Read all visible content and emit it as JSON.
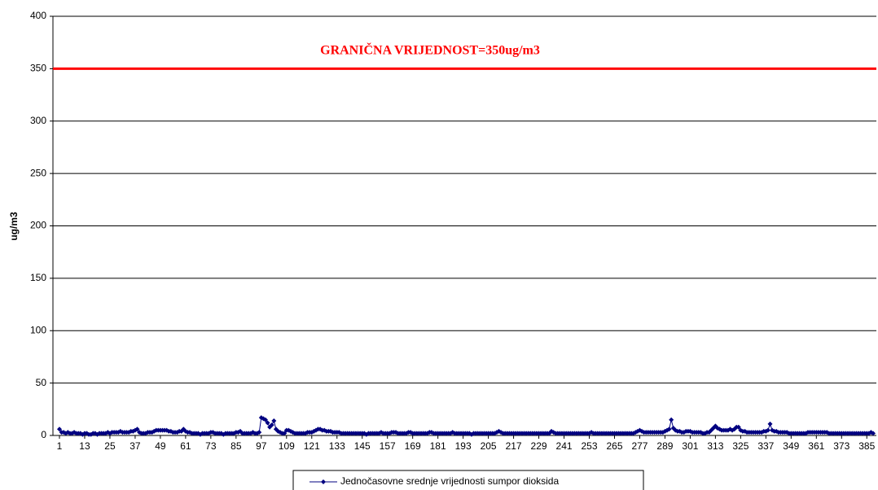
{
  "chart_data": {
    "type": "line",
    "y_label": "ug/m3",
    "annotation": "GRANIČNA VRIJEDNOST=350ug/m3",
    "reference_line": {
      "value": 350,
      "color": "#ff0000"
    },
    "xlim": [
      1,
      388
    ],
    "xticks": [
      1,
      13,
      25,
      37,
      49,
      61,
      73,
      85,
      97,
      109,
      121,
      133,
      145,
      157,
      169,
      181,
      193,
      205,
      217,
      229,
      241,
      253,
      265,
      277,
      289,
      301,
      313,
      325,
      337,
      349,
      361,
      373,
      385
    ],
    "ylim": [
      0,
      400
    ],
    "yticks": [
      0,
      50,
      100,
      150,
      200,
      250,
      300,
      350,
      400
    ],
    "grid": true,
    "legend": "bottom",
    "x": [
      1,
      2,
      3,
      4,
      5,
      6,
      7,
      8,
      9,
      10,
      11,
      12,
      13,
      14,
      15,
      16,
      17,
      18,
      19,
      20,
      21,
      22,
      23,
      24,
      25,
      26,
      27,
      28,
      29,
      30,
      31,
      32,
      33,
      34,
      35,
      36,
      37,
      38,
      39,
      40,
      41,
      42,
      43,
      44,
      45,
      46,
      47,
      48,
      49,
      50,
      51,
      52,
      53,
      54,
      55,
      56,
      57,
      58,
      59,
      60,
      61,
      62,
      63,
      64,
      65,
      66,
      67,
      68,
      69,
      70,
      71,
      72,
      73,
      74,
      75,
      76,
      77,
      78,
      79,
      80,
      81,
      82,
      83,
      84,
      85,
      86,
      87,
      88,
      89,
      90,
      91,
      92,
      93,
      94,
      95,
      96,
      97,
      98,
      99,
      100,
      101,
      102,
      103,
      104,
      105,
      106,
      107,
      108,
      109,
      110,
      111,
      112,
      113,
      114,
      115,
      116,
      117,
      118,
      119,
      120,
      121,
      122,
      123,
      124,
      125,
      126,
      127,
      128,
      129,
      130,
      131,
      132,
      133,
      134,
      135,
      136,
      137,
      138,
      139,
      140,
      141,
      142,
      143,
      144,
      145,
      146,
      147,
      148,
      149,
      150,
      151,
      152,
      153,
      154,
      155,
      156,
      157,
      158,
      159,
      160,
      161,
      162,
      163,
      164,
      165,
      166,
      167,
      168,
      169,
      170,
      171,
      172,
      173,
      174,
      175,
      176,
      177,
      178,
      179,
      180,
      181,
      182,
      183,
      184,
      185,
      186,
      187,
      188,
      189,
      190,
      191,
      192,
      193,
      194,
      195,
      196,
      197,
      198,
      199,
      200,
      201,
      202,
      203,
      204,
      205,
      206,
      207,
      208,
      209,
      210,
      211,
      212,
      213,
      214,
      215,
      216,
      217,
      218,
      219,
      220,
      221,
      222,
      223,
      224,
      225,
      226,
      227,
      228,
      229,
      230,
      231,
      232,
      233,
      234,
      235,
      236,
      237,
      238,
      239,
      240,
      241,
      242,
      243,
      244,
      245,
      246,
      247,
      248,
      249,
      250,
      251,
      252,
      253,
      254,
      255,
      256,
      257,
      258,
      259,
      260,
      261,
      262,
      263,
      264,
      265,
      266,
      267,
      268,
      269,
      270,
      271,
      272,
      273,
      274,
      275,
      276,
      277,
      278,
      279,
      280,
      281,
      282,
      283,
      284,
      285,
      286,
      287,
      288,
      289,
      290,
      291,
      292,
      293,
      294,
      295,
      296,
      297,
      298,
      299,
      300,
      301,
      302,
      303,
      304,
      305,
      306,
      307,
      308,
      309,
      310,
      311,
      312,
      313,
      314,
      315,
      316,
      317,
      318,
      319,
      320,
      321,
      322,
      323,
      324,
      325,
      326,
      327,
      328,
      329,
      330,
      331,
      332,
      333,
      334,
      335,
      336,
      337,
      338,
      339,
      340,
      341,
      342,
      343,
      344,
      345,
      346,
      347,
      348,
      349,
      350,
      351,
      352,
      353,
      354,
      355,
      356,
      357,
      358,
      359,
      360,
      361,
      362,
      363,
      364,
      365,
      366,
      367,
      368,
      369,
      370,
      371,
      372,
      373,
      374,
      375,
      376,
      377,
      378,
      379,
      380,
      381,
      382,
      383,
      384,
      385,
      386,
      387,
      388
    ],
    "series": [
      {
        "name": "Jednočasovne srednje vrijednosti sumpor dioksida",
        "color": "#000080",
        "values": [
          6,
          3,
          3,
          2,
          3,
          2,
          2,
          3,
          2,
          2,
          2,
          1,
          2,
          2,
          1,
          1,
          2,
          2,
          1,
          2,
          2,
          2,
          2,
          3,
          2,
          3,
          3,
          3,
          3,
          4,
          3,
          3,
          3,
          3,
          4,
          4,
          5,
          6,
          3,
          2,
          2,
          2,
          3,
          3,
          3,
          4,
          5,
          5,
          5,
          5,
          5,
          5,
          4,
          4,
          3,
          3,
          3,
          4,
          4,
          6,
          4,
          3,
          3,
          2,
          2,
          2,
          2,
          1,
          2,
          2,
          2,
          2,
          3,
          3,
          2,
          2,
          2,
          2,
          1,
          2,
          2,
          2,
          2,
          2,
          3,
          3,
          4,
          2,
          2,
          2,
          2,
          2,
          3,
          2,
          2,
          3,
          17,
          16,
          15,
          12,
          8,
          10,
          14,
          6,
          4,
          3,
          2,
          2,
          5,
          5,
          4,
          3,
          2,
          2,
          2,
          2,
          2,
          2,
          3,
          3,
          3,
          4,
          5,
          6,
          6,
          5,
          5,
          4,
          4,
          4,
          3,
          3,
          3,
          3,
          2,
          2,
          2,
          2,
          2,
          2,
          2,
          2,
          2,
          2,
          2,
          2,
          1,
          2,
          2,
          2,
          2,
          2,
          2,
          3,
          2,
          2,
          2,
          2,
          3,
          3,
          3,
          2,
          2,
          2,
          2,
          2,
          3,
          3,
          2,
          2,
          2,
          2,
          2,
          2,
          2,
          2,
          3,
          3,
          2,
          2,
          2,
          2,
          2,
          2,
          2,
          2,
          2,
          3,
          2,
          2,
          2,
          2,
          2,
          2,
          2,
          2,
          1,
          2,
          2,
          2,
          2,
          2,
          2,
          2,
          2,
          2,
          2,
          2,
          3,
          4,
          3,
          2,
          2,
          2,
          2,
          2,
          2,
          2,
          2,
          2,
          2,
          2,
          2,
          2,
          2,
          2,
          2,
          2,
          2,
          2,
          2,
          2,
          2,
          2,
          4,
          3,
          2,
          2,
          2,
          2,
          2,
          2,
          2,
          2,
          2,
          2,
          2,
          2,
          2,
          2,
          2,
          2,
          2,
          3,
          2,
          2,
          2,
          2,
          2,
          2,
          2,
          2,
          2,
          2,
          2,
          2,
          2,
          2,
          2,
          2,
          2,
          2,
          2,
          2,
          3,
          4,
          5,
          4,
          3,
          3,
          3,
          3,
          3,
          3,
          3,
          3,
          3,
          3,
          4,
          5,
          6,
          15,
          7,
          5,
          4,
          4,
          3,
          3,
          4,
          4,
          4,
          3,
          3,
          3,
          3,
          3,
          2,
          2,
          3,
          3,
          5,
          7,
          9,
          7,
          6,
          5,
          5,
          5,
          5,
          6,
          5,
          6,
          8,
          8,
          5,
          4,
          4,
          3,
          3,
          3,
          3,
          3,
          3,
          3,
          3,
          4,
          4,
          5,
          11,
          5,
          4,
          4,
          3,
          3,
          3,
          3,
          3,
          2,
          2,
          2,
          2,
          2,
          2,
          2,
          2,
          2,
          3,
          3,
          3,
          3,
          3,
          3,
          3,
          3,
          3,
          3,
          2,
          2,
          2,
          2,
          2,
          2,
          2,
          2,
          2,
          2,
          2,
          2,
          2,
          2,
          2,
          2,
          2,
          2,
          2,
          2,
          3,
          2
        ]
      }
    ]
  }
}
